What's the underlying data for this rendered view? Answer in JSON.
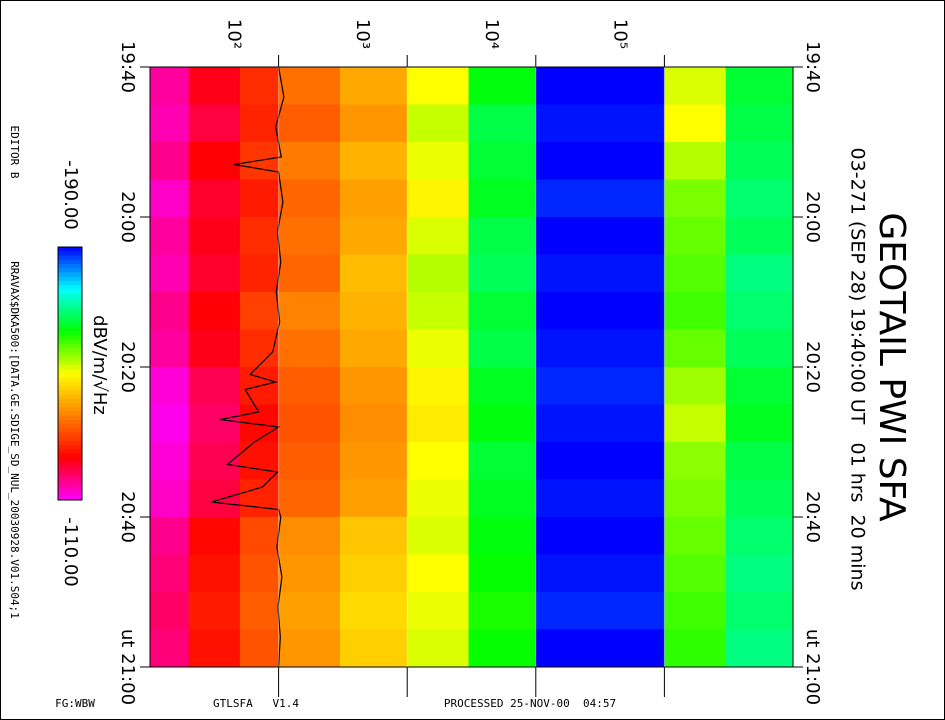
{
  "chart_data": {
    "type": "spectrogram",
    "title": "GEOTAIL PWI SFA",
    "subtitle": "03-271 (SEP 28) 19:40:00 UT   01 hrs  20 mins",
    "editor": "EDITOR B",
    "source": "RRAVAX$DKA500:[DATA.GE.SDIGE_SD_NUL_20030928.V01.S04;1",
    "footer": [
      "FG:WBW",
      "GTLSFA   V1.4",
      "PROCESSED 25-NOV-00  04:57"
    ],
    "xscale": "log",
    "xlim": [
      10,
      1000000
    ],
    "xticks": [
      {
        "value": 100,
        "label": "10²"
      },
      {
        "value": 1000,
        "label": "10³"
      },
      {
        "value": 10000,
        "label": "10⁴"
      },
      {
        "value": 100000,
        "label": "10⁵"
      }
    ],
    "ylim": [
      0,
      80
    ],
    "yticks": [
      {
        "value": 0,
        "label": "19:40"
      },
      {
        "value": 20,
        "label": "20:00"
      },
      {
        "value": 40,
        "label": "20:20"
      },
      {
        "value": 60,
        "label": "20:40"
      },
      {
        "value": 80,
        "label": "ut 21:00"
      }
    ],
    "xbins": [
      10,
      20,
      50,
      100,
      300,
      1000,
      3000,
      10000,
      100000,
      300000,
      1000000
    ],
    "ybins": [
      0,
      5,
      10,
      15,
      20,
      25,
      30,
      35,
      40,
      45,
      50,
      55,
      60,
      65,
      70,
      75,
      80
    ],
    "values": [
      [
        -115,
        -122,
        -128,
        -135,
        -141,
        -150,
        -164,
        -190,
        -152,
        -166
      ],
      [
        -114,
        -120,
        -127,
        -133,
        -139,
        -153,
        -167,
        -189,
        -150,
        -167
      ],
      [
        -116,
        -123,
        -129,
        -136,
        -142,
        -151,
        -166,
        -190,
        -154,
        -168
      ],
      [
        -113,
        -121,
        -126,
        -134,
        -140,
        -149,
        -165,
        -188,
        -157,
        -169
      ],
      [
        -115,
        -122,
        -128,
        -135,
        -141,
        -152,
        -167,
        -190,
        -158,
        -168
      ],
      [
        -114,
        -121,
        -127,
        -134,
        -143,
        -154,
        -168,
        -189,
        -159,
        -170
      ],
      [
        -116,
        -123,
        -130,
        -137,
        -142,
        -153,
        -166,
        -190,
        -160,
        -169
      ],
      [
        -115,
        -122,
        -128,
        -135,
        -141,
        -151,
        -167,
        -189,
        -158,
        -168
      ],
      [
        -112,
        -119,
        -126,
        -133,
        -139,
        -149,
        -165,
        -188,
        -155,
        -166
      ],
      [
        -111,
        -118,
        -124,
        -132,
        -138,
        -148,
        -164,
        -189,
        -153,
        -165
      ],
      [
        -112,
        -119,
        -125,
        -133,
        -139,
        -150,
        -166,
        -190,
        -156,
        -167
      ],
      [
        -113,
        -120,
        -127,
        -134,
        -140,
        -151,
        -165,
        -189,
        -157,
        -168
      ],
      [
        -116,
        -124,
        -131,
        -138,
        -144,
        -152,
        -164,
        -190,
        -158,
        -169
      ],
      [
        -117,
        -125,
        -132,
        -139,
        -145,
        -150,
        -163,
        -189,
        -159,
        -170
      ],
      [
        -118,
        -126,
        -133,
        -140,
        -146,
        -151,
        -162,
        -188,
        -160,
        -169
      ],
      [
        -117,
        -125,
        -132,
        -139,
        -145,
        -152,
        -163,
        -190,
        -161,
        -170
      ]
    ],
    "colorscale": [
      "#0000ff",
      "#00ffff",
      "#00ff00",
      "#ffff00",
      "#ff8000",
      "#ff0000",
      "#ff00ff"
    ],
    "zlim": [
      -190,
      -110
    ],
    "colorbar": {
      "label": "dBV/m/√Hz",
      "ticks": [
        {
          "value": -190,
          "label": "-190.00"
        },
        {
          "value": -110,
          "label": "-110.00"
        }
      ]
    },
    "trace": {
      "color": "#000000",
      "t": [
        0,
        4,
        8,
        12,
        13,
        14,
        18,
        22,
        26,
        30,
        34,
        38,
        41,
        42,
        43,
        46,
        47,
        48,
        50,
        53,
        54,
        56,
        58,
        59,
        60,
        64,
        68,
        72,
        76,
        80
      ],
      "x": [
        100,
        110,
        95,
        105,
        45,
        100,
        108,
        98,
        104,
        96,
        102,
        90,
        60,
        95,
        55,
        70,
        35,
        100,
        65,
        40,
        98,
        75,
        30,
        100,
        104,
        97,
        106,
        99,
        103,
        100
      ]
    }
  }
}
